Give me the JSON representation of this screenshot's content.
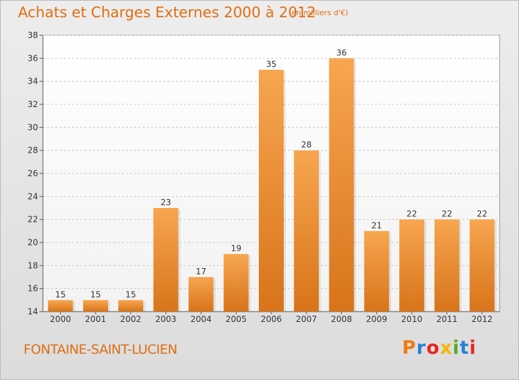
{
  "header": {
    "title": "Achats et Charges Externes 2000 à 2012",
    "unit_note": "(en milliers d'€)"
  },
  "footer": {
    "commune": "FONTAINE-SAINT-LUCIEN",
    "logo_text": "Proxiti",
    "logo_colors": [
      "#f07a12",
      "#2a7fd4",
      "#e6261f",
      "#f2b705",
      "#5aa72a",
      "#2a7fd4",
      "#e6261f"
    ]
  },
  "colors": {
    "bar_light": "#f7a650",
    "bar_dark": "#d8741a",
    "title": "#e06d10",
    "grid": "#c8c8c8"
  },
  "chart_data": {
    "type": "bar",
    "categories": [
      "2000",
      "2001",
      "2002",
      "2003",
      "2004",
      "2005",
      "2006",
      "2007",
      "2008",
      "2009",
      "2010",
      "2011",
      "2012"
    ],
    "values": [
      15,
      15,
      15,
      23,
      17,
      19,
      35,
      28,
      36,
      21,
      22,
      22,
      22
    ],
    "ylim": [
      14,
      38
    ],
    "yticks": [
      14,
      16,
      18,
      20,
      22,
      24,
      26,
      28,
      30,
      32,
      34,
      36,
      38
    ],
    "grid": true,
    "data_labels": true
  }
}
